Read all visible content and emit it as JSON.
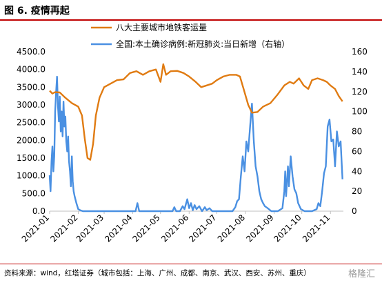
{
  "figure": {
    "title": "图 6. 疫情再起",
    "source": "资料来源：wind，红塔证券（城市包括：上海、广州、成都、南京、武汉、西安、苏州、重庆）",
    "watermark": "格隆汇"
  },
  "chart_data": {
    "type": "line",
    "xlabel": "",
    "ylabel_left": "",
    "ylabel_right": "",
    "x_ticks": [
      "2021-01",
      "2021-02",
      "2021-03",
      "2021-04",
      "2021-05",
      "2021-06",
      "2021-07",
      "2021-08",
      "2021-09",
      "2021-10",
      "2021-11"
    ],
    "x_range": [
      "2021-01-01",
      "2021-11-15"
    ],
    "y_left_range": [
      0,
      4500
    ],
    "y_left_ticks": [
      "0.0",
      "500.0",
      "1000.0",
      "1500.0",
      "2000.0",
      "2500.0",
      "3000.0",
      "3500.0",
      "4000.0",
      "4500.0"
    ],
    "y_right_range": [
      0,
      160
    ],
    "y_right_ticks": [
      "0",
      "20",
      "40",
      "60",
      "80",
      "100",
      "120",
      "140",
      "160"
    ],
    "grid": false,
    "legend_position": "top",
    "series": [
      {
        "name": "八大主要城市地铁客运量",
        "axis": "left",
        "color": "#e07b12",
        "points": [
          [
            "2021-01-01",
            3400
          ],
          [
            "2021-01-04",
            3320
          ],
          [
            "2021-01-07",
            3360
          ],
          [
            "2021-01-12",
            3350
          ],
          [
            "2021-01-18",
            3200
          ],
          [
            "2021-01-25",
            3050
          ],
          [
            "2021-02-01",
            2950
          ],
          [
            "2021-02-05",
            2700
          ],
          [
            "2021-02-08",
            2050
          ],
          [
            "2021-02-11",
            1500
          ],
          [
            "2021-02-14",
            1450
          ],
          [
            "2021-02-17",
            1900
          ],
          [
            "2021-02-20",
            2700
          ],
          [
            "2021-02-24",
            3200
          ],
          [
            "2021-03-01",
            3500
          ],
          [
            "2021-03-08",
            3600
          ],
          [
            "2021-03-15",
            3700
          ],
          [
            "2021-03-22",
            3720
          ],
          [
            "2021-03-29",
            3900
          ],
          [
            "2021-04-05",
            3950
          ],
          [
            "2021-04-12",
            3850
          ],
          [
            "2021-04-19",
            3950
          ],
          [
            "2021-04-26",
            4000
          ],
          [
            "2021-05-01",
            3650
          ],
          [
            "2021-05-04",
            4150
          ],
          [
            "2021-05-07",
            3850
          ],
          [
            "2021-05-12",
            3950
          ],
          [
            "2021-05-19",
            3960
          ],
          [
            "2021-05-26",
            3900
          ],
          [
            "2021-06-01",
            3800
          ],
          [
            "2021-06-08",
            3650
          ],
          [
            "2021-06-14",
            3500
          ],
          [
            "2021-06-20",
            3550
          ],
          [
            "2021-06-26",
            3600
          ],
          [
            "2021-07-01",
            3700
          ],
          [
            "2021-07-08",
            3800
          ],
          [
            "2021-07-15",
            3850
          ],
          [
            "2021-07-22",
            3850
          ],
          [
            "2021-07-26",
            3800
          ],
          [
            "2021-07-30",
            3450
          ],
          [
            "2021-08-04",
            3000
          ],
          [
            "2021-08-08",
            2780
          ],
          [
            "2021-08-14",
            2800
          ],
          [
            "2021-08-20",
            2950
          ],
          [
            "2021-08-28",
            3050
          ],
          [
            "2021-09-05",
            3300
          ],
          [
            "2021-09-12",
            3550
          ],
          [
            "2021-09-18",
            3650
          ],
          [
            "2021-09-22",
            3600
          ],
          [
            "2021-09-28",
            3750
          ],
          [
            "2021-10-03",
            3550
          ],
          [
            "2021-10-08",
            3450
          ],
          [
            "2021-10-12",
            3700
          ],
          [
            "2021-10-18",
            3750
          ],
          [
            "2021-10-24",
            3700
          ],
          [
            "2021-10-28",
            3650
          ],
          [
            "2021-11-01",
            3550
          ],
          [
            "2021-11-06",
            3450
          ],
          [
            "2021-11-10",
            3250
          ],
          [
            "2021-11-14",
            3100
          ]
        ]
      },
      {
        "name": "全国:本土确诊病例:新冠肺炎:当日新增（右轴）",
        "axis": "right",
        "color": "#4a90e2",
        "points": [
          [
            "2021-01-01",
            36
          ],
          [
            "2021-01-02",
            20
          ],
          [
            "2021-01-03",
            50
          ],
          [
            "2021-01-04",
            65
          ],
          [
            "2021-01-05",
            40
          ],
          [
            "2021-01-06",
            55
          ],
          [
            "2021-01-07",
            100
          ],
          [
            "2021-01-08",
            120
          ],
          [
            "2021-01-09",
            135
          ],
          [
            "2021-01-10",
            105
          ],
          [
            "2021-01-11",
            90
          ],
          [
            "2021-01-12",
            115
          ],
          [
            "2021-01-13",
            80
          ],
          [
            "2021-01-14",
            100
          ],
          [
            "2021-01-15",
            75
          ],
          [
            "2021-01-16",
            110
          ],
          [
            "2021-01-17",
            85
          ],
          [
            "2021-01-18",
            95
          ],
          [
            "2021-01-19",
            70
          ],
          [
            "2021-01-20",
            60
          ],
          [
            "2021-01-21",
            75
          ],
          [
            "2021-01-22",
            50
          ],
          [
            "2021-01-23",
            40
          ],
          [
            "2021-01-24",
            25
          ],
          [
            "2021-01-25",
            55
          ],
          [
            "2021-01-26",
            30
          ],
          [
            "2021-01-27",
            20
          ],
          [
            "2021-01-28",
            15
          ],
          [
            "2021-01-30",
            8
          ],
          [
            "2021-02-01",
            2
          ],
          [
            "2021-02-03",
            1
          ],
          [
            "2021-02-06",
            0
          ],
          [
            "2021-03-20",
            0
          ],
          [
            "2021-04-04",
            0
          ],
          [
            "2021-04-06",
            8
          ],
          [
            "2021-04-08",
            0
          ],
          [
            "2021-04-12",
            0
          ],
          [
            "2021-04-20",
            0
          ],
          [
            "2021-05-05",
            0
          ],
          [
            "2021-05-14",
            0
          ],
          [
            "2021-05-16",
            4
          ],
          [
            "2021-05-18",
            0
          ],
          [
            "2021-05-22",
            0
          ],
          [
            "2021-05-25",
            5
          ],
          [
            "2021-05-27",
            2
          ],
          [
            "2021-05-30",
            12
          ],
          [
            "2021-06-01",
            3
          ],
          [
            "2021-06-03",
            8
          ],
          [
            "2021-06-05",
            1
          ],
          [
            "2021-06-07",
            6
          ],
          [
            "2021-06-09",
            2
          ],
          [
            "2021-06-12",
            5
          ],
          [
            "2021-06-15",
            0
          ],
          [
            "2021-06-18",
            4
          ],
          [
            "2021-06-20",
            1
          ],
          [
            "2021-06-23",
            3
          ],
          [
            "2021-06-26",
            0
          ],
          [
            "2021-07-02",
            0
          ],
          [
            "2021-07-10",
            0
          ],
          [
            "2021-07-18",
            0
          ],
          [
            "2021-07-21",
            4
          ],
          [
            "2021-07-23",
            10
          ],
          [
            "2021-07-25",
            12
          ],
          [
            "2021-07-27",
            35
          ],
          [
            "2021-07-29",
            55
          ],
          [
            "2021-07-31",
            40
          ],
          [
            "2021-08-02",
            70
          ],
          [
            "2021-08-04",
            60
          ],
          [
            "2021-08-06",
            85
          ],
          [
            "2021-08-08",
            108
          ],
          [
            "2021-08-10",
            70
          ],
          [
            "2021-08-12",
            45
          ],
          [
            "2021-08-14",
            35
          ],
          [
            "2021-08-16",
            20
          ],
          [
            "2021-08-18",
            12
          ],
          [
            "2021-08-20",
            8
          ],
          [
            "2021-08-22",
            5
          ],
          [
            "2021-08-25",
            3
          ],
          [
            "2021-08-29",
            0
          ],
          [
            "2021-09-05",
            0
          ],
          [
            "2021-09-10",
            3
          ],
          [
            "2021-09-12",
            20
          ],
          [
            "2021-09-13",
            40
          ],
          [
            "2021-09-14",
            15
          ],
          [
            "2021-09-16",
            45
          ],
          [
            "2021-09-17",
            25
          ],
          [
            "2021-09-19",
            55
          ],
          [
            "2021-09-21",
            35
          ],
          [
            "2021-09-23",
            22
          ],
          [
            "2021-09-25",
            18
          ],
          [
            "2021-09-27",
            8
          ],
          [
            "2021-09-30",
            2
          ],
          [
            "2021-10-04",
            0
          ],
          [
            "2021-10-12",
            0
          ],
          [
            "2021-10-17",
            2
          ],
          [
            "2021-10-19",
            8
          ],
          [
            "2021-10-21",
            5
          ],
          [
            "2021-10-23",
            20
          ],
          [
            "2021-10-25",
            38
          ],
          [
            "2021-10-27",
            45
          ],
          [
            "2021-10-29",
            85
          ],
          [
            "2021-10-31",
            92
          ],
          [
            "2021-11-02",
            70
          ],
          [
            "2021-11-04",
            72
          ],
          [
            "2021-11-06",
            45
          ],
          [
            "2021-11-08",
            80
          ],
          [
            "2021-11-10",
            65
          ],
          [
            "2021-11-12",
            70
          ],
          [
            "2021-11-14",
            32
          ]
        ]
      }
    ]
  }
}
